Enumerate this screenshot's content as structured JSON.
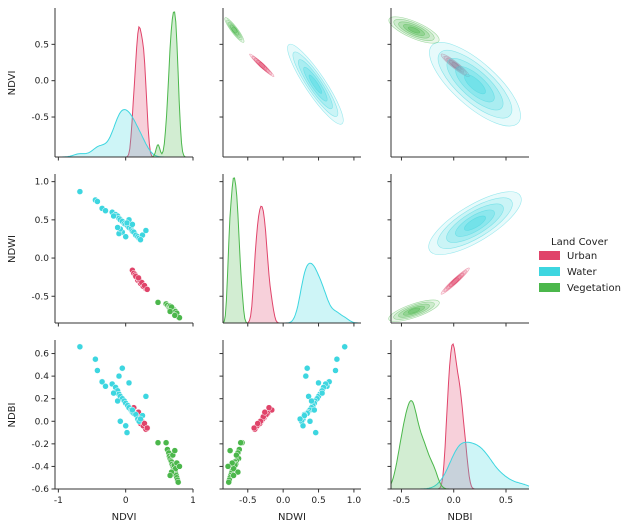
{
  "chart_data": {
    "type": "pairplot",
    "variables": [
      "NDVI",
      "NDWI",
      "NDBI"
    ],
    "axis_ranges": {
      "NDVI": [
        -1.05,
        1.0
      ],
      "NDWI": [
        -0.85,
        1.1
      ],
      "NDBI": [
        -0.6,
        0.72
      ]
    },
    "ticks": {
      "NDVI_x": [
        "-1",
        "0",
        "1"
      ],
      "NDVI_x_values": [
        -1,
        0,
        1
      ],
      "NDVI_y": [
        "0.5",
        "0.0",
        "-0.5"
      ],
      "NDVI_y_values": [
        0.5,
        0.0,
        -0.5
      ],
      "NDWI_x": [
        "-0.5",
        "0.0",
        "0.5",
        "1.0"
      ],
      "NDWI_x_values": [
        -0.5,
        0.0,
        0.5,
        1.0
      ],
      "NDWI_y": [
        "1.0",
        "0.5",
        "0.0",
        "-0.5"
      ],
      "NDWI_y_values": [
        1.0,
        0.5,
        0.0,
        -0.5
      ],
      "NDBI_x": [
        "-0.5",
        "0.0",
        "0.5"
      ],
      "NDBI_x_values": [
        -0.5,
        0.0,
        0.5
      ],
      "NDBI_y": [
        "0.6",
        "0.4",
        "0.2",
        "0.0",
        "-0.2",
        "-0.4",
        "-0.6"
      ],
      "NDBI_y_values": [
        0.6,
        0.4,
        0.2,
        0.0,
        -0.2,
        -0.4,
        -0.6
      ]
    },
    "legend": {
      "title": "Land Cover",
      "position": "right",
      "items": [
        {
          "name": "Urban",
          "color": "#e0446a"
        },
        {
          "name": "Water",
          "color": "#3dd6e0"
        },
        {
          "name": "Vegetation",
          "color": "#4bb74b"
        }
      ]
    },
    "series": [
      {
        "name": "Urban",
        "color": "#e0446a",
        "points": [
          [
            0.1,
            -0.16,
            0.1
          ],
          [
            0.12,
            -0.2,
            0.12
          ],
          [
            0.14,
            -0.22,
            0.07
          ],
          [
            0.16,
            -0.25,
            0.05
          ],
          [
            0.18,
            -0.27,
            0.03
          ],
          [
            0.2,
            -0.3,
            0.01
          ],
          [
            0.22,
            -0.31,
            0.0
          ],
          [
            0.24,
            -0.33,
            -0.01
          ],
          [
            0.26,
            -0.35,
            -0.03
          ],
          [
            0.28,
            -0.38,
            -0.05
          ],
          [
            0.3,
            -0.4,
            -0.07
          ],
          [
            0.18,
            -0.29,
            0.02
          ],
          [
            0.22,
            -0.33,
            -0.02
          ],
          [
            0.26,
            -0.37,
            -0.04
          ],
          [
            0.15,
            -0.24,
            0.06
          ],
          [
            0.2,
            -0.28,
            0.04
          ],
          [
            0.24,
            -0.32,
            0.0
          ],
          [
            0.28,
            -0.36,
            -0.02
          ],
          [
            0.32,
            -0.41,
            -0.06
          ],
          [
            0.19,
            -0.26,
            0.08
          ]
        ]
      },
      {
        "name": "Water",
        "color": "#3dd6e0",
        "points": [
          [
            -0.68,
            0.87,
            0.66
          ],
          [
            -0.45,
            0.76,
            0.55
          ],
          [
            -0.42,
            0.74,
            0.45
          ],
          [
            -0.35,
            0.65,
            0.35
          ],
          [
            -0.3,
            0.62,
            0.31
          ],
          [
            -0.2,
            0.6,
            0.33
          ],
          [
            -0.15,
            0.57,
            0.3
          ],
          [
            -0.12,
            0.55,
            0.27
          ],
          [
            -0.1,
            0.52,
            0.24
          ],
          [
            -0.08,
            0.5,
            0.22
          ],
          [
            -0.05,
            0.48,
            0.2
          ],
          [
            -0.02,
            0.45,
            0.18
          ],
          [
            0.0,
            0.44,
            0.16
          ],
          [
            0.03,
            0.42,
            0.14
          ],
          [
            0.05,
            0.4,
            0.12
          ],
          [
            0.08,
            0.38,
            0.1
          ],
          [
            0.1,
            0.35,
            0.08
          ],
          [
            0.12,
            0.34,
            0.07
          ],
          [
            0.15,
            0.3,
            0.06
          ],
          [
            0.18,
            0.28,
            0.02
          ],
          [
            0.2,
            0.26,
            0.0
          ],
          [
            0.25,
            0.3,
            0.05
          ],
          [
            -0.05,
            0.34,
            0.47
          ],
          [
            -0.1,
            0.32,
            0.4
          ],
          [
            0.05,
            0.5,
            0.34
          ],
          [
            0.0,
            0.28,
            -0.04
          ],
          [
            -0.08,
            0.38,
            0.0
          ],
          [
            0.02,
            0.46,
            -0.1
          ],
          [
            -0.18,
            0.55,
            0.25
          ],
          [
            0.3,
            0.36,
            0.22
          ],
          [
            0.22,
            0.24,
            0.02
          ],
          [
            -0.12,
            0.4,
            0.18
          ],
          [
            0.1,
            0.44,
            0.1
          ]
        ]
      },
      {
        "name": "Vegetation",
        "color": "#4bb74b",
        "points": [
          [
            0.48,
            -0.58,
            -0.19
          ],
          [
            0.6,
            -0.6,
            -0.19
          ],
          [
            0.62,
            -0.62,
            -0.25
          ],
          [
            0.64,
            -0.64,
            -0.28
          ],
          [
            0.65,
            -0.65,
            -0.31
          ],
          [
            0.66,
            -0.63,
            -0.33
          ],
          [
            0.67,
            -0.66,
            -0.35
          ],
          [
            0.68,
            -0.68,
            -0.36
          ],
          [
            0.69,
            -0.67,
            -0.38
          ],
          [
            0.7,
            -0.69,
            -0.4
          ],
          [
            0.71,
            -0.7,
            -0.41
          ],
          [
            0.72,
            -0.71,
            -0.43
          ],
          [
            0.73,
            -0.72,
            -0.44
          ],
          [
            0.74,
            -0.73,
            -0.46
          ],
          [
            0.75,
            -0.74,
            -0.48
          ],
          [
            0.76,
            -0.75,
            -0.5
          ],
          [
            0.77,
            -0.76,
            -0.52
          ],
          [
            0.78,
            -0.77,
            -0.54
          ],
          [
            0.72,
            -0.68,
            -0.39
          ],
          [
            0.7,
            -0.66,
            -0.3
          ],
          [
            0.74,
            -0.7,
            -0.42
          ],
          [
            0.76,
            -0.72,
            -0.37
          ],
          [
            0.68,
            -0.64,
            -0.45
          ],
          [
            0.8,
            -0.78,
            -0.4
          ],
          [
            0.66,
            -0.7,
            -0.48
          ],
          [
            0.73,
            -0.75,
            -0.26
          ]
        ]
      }
    ]
  }
}
